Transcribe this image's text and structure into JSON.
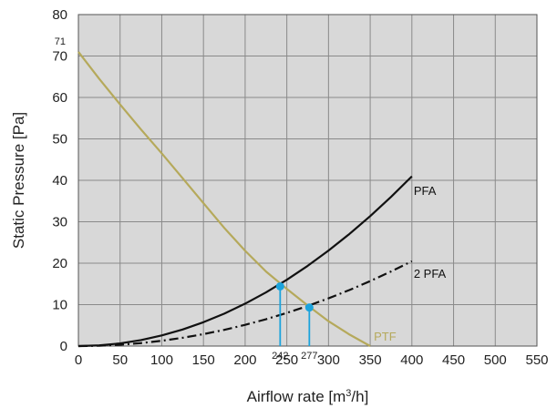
{
  "chart_data": {
    "type": "line",
    "xlabel_main": "Airflow rate [m",
    "xlabel_sup": "3",
    "xlabel_tail": "/h]",
    "ylabel": "Static Pressure [Pa]",
    "xlim": [
      0,
      550
    ],
    "ylim": [
      0,
      80
    ],
    "x_ticks": [
      "0",
      "50",
      "100",
      "150",
      "200",
      "250",
      "300",
      "350",
      "400",
      "450",
      "500",
      "550"
    ],
    "y_ticks": [
      "0",
      "10",
      "20",
      "30",
      "40",
      "50",
      "60",
      "70",
      "80"
    ],
    "grid": true,
    "series": [
      {
        "name": "PFA",
        "style": "solid",
        "color": "#111111",
        "x": [
          0,
          25,
          50,
          75,
          100,
          125,
          150,
          175,
          200,
          225,
          250,
          275,
          300,
          325,
          350,
          375,
          400
        ],
        "y": [
          0,
          0.16,
          0.64,
          1.44,
          2.56,
          4.0,
          5.76,
          7.84,
          10.24,
          12.96,
          16.0,
          19.36,
          23.04,
          27.04,
          31.36,
          36.0,
          40.96
        ]
      },
      {
        "name": "2 PFA",
        "style": "dashdot",
        "color": "#111111",
        "x": [
          0,
          25,
          50,
          75,
          100,
          125,
          150,
          175,
          200,
          225,
          250,
          275,
          300,
          325,
          350,
          375,
          400
        ],
        "y": [
          0,
          0.08,
          0.32,
          0.72,
          1.28,
          2.0,
          2.88,
          3.92,
          5.12,
          6.48,
          8.0,
          9.68,
          11.52,
          13.52,
          15.68,
          18.0,
          20.48
        ]
      },
      {
        "name": "PTF",
        "style": "solid",
        "color": "#b5a95b",
        "x": [
          0,
          25,
          50,
          75,
          100,
          125,
          150,
          175,
          200,
          225,
          250,
          275,
          300,
          325,
          350
        ],
        "y": [
          71,
          64.5,
          58.3,
          52.3,
          46.5,
          40.5,
          34.5,
          28.5,
          23.0,
          18.0,
          13.8,
          9.8,
          6.0,
          2.8,
          0
        ]
      }
    ],
    "operating_points": [
      {
        "label": "242",
        "x": 242,
        "y": 14.4,
        "color": "#1ba3dc"
      },
      {
        "label": "277",
        "x": 277,
        "y": 9.3,
        "color": "#1ba3dc"
      }
    ],
    "annotations": [
      {
        "text": "71",
        "x": 0,
        "y": 71
      }
    ]
  }
}
